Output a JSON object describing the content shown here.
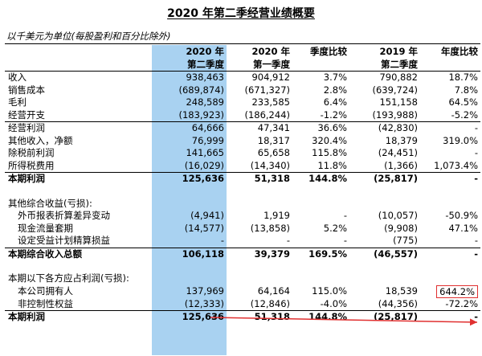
{
  "title": "2020 年第二季经营业绩概要",
  "subtitle": "以千美元为单位(每股盈利和百分比除外)",
  "headers": {
    "row1": [
      "",
      "2020 年",
      "2020 年",
      "季度比较",
      "2019 年",
      "年度比较"
    ],
    "row2": [
      "",
      "第二季度",
      "第一季度",
      "",
      "第二季度",
      ""
    ]
  },
  "rows": [
    {
      "cells": [
        "收入",
        "938,463",
        "904,912",
        "3.7%",
        "790,882",
        "18.7%"
      ]
    },
    {
      "cells": [
        "销售成本",
        "(689,874)",
        "(671,327)",
        "2.8%",
        "(639,724)",
        "7.8%"
      ]
    },
    {
      "cells": [
        "毛利",
        "248,589",
        "233,585",
        "6.4%",
        "151,158",
        "64.5%"
      ]
    },
    {
      "cells": [
        "经营开支",
        "(183,923)",
        "(186,244)",
        "-1.2%",
        "(193,988)",
        "-5.2%"
      ]
    },
    {
      "cells": [
        "经营利润",
        "64,666",
        "47,341",
        "36.6%",
        "(42,830)",
        "-"
      ]
    },
    {
      "cells": [
        "其他收入，净额",
        "76,999",
        "18,317",
        "320.4%",
        "18,379",
        "319.0%"
      ]
    },
    {
      "cells": [
        "除税前利润",
        "141,665",
        "65,658",
        "115.8%",
        "(24,451)",
        "-"
      ]
    },
    {
      "cells": [
        "所得税费用",
        "(16,029)",
        "(14,340)",
        "11.8%",
        "(1,366)",
        "1,073.4%"
      ]
    },
    {
      "cells": [
        "本期利润",
        "125,636",
        "51,318",
        "144.8%",
        "(25,817)",
        "-"
      ]
    },
    {
      "cells": [
        "",
        "",
        "",
        "",
        "",
        ""
      ]
    },
    {
      "cells": [
        "其他综合收益(亏损):",
        "",
        "",
        "",
        "",
        ""
      ]
    },
    {
      "cells": [
        "外币报表折算差异变动",
        "(4,941)",
        "1,919",
        "-",
        "(10,057)",
        "-50.9%"
      ]
    },
    {
      "cells": [
        "现金流量套期",
        "(14,577)",
        "(13,858)",
        "5.2%",
        "(9,908)",
        "47.1%"
      ]
    },
    {
      "cells": [
        "设定受益计划精算损益",
        "-",
        "-",
        "-",
        "(775)",
        "-"
      ]
    },
    {
      "cells": [
        "本期综合收入总额",
        "106,118",
        "39,379",
        "169.5%",
        "(46,557)",
        "-"
      ]
    },
    {
      "cells": [
        "",
        "",
        "",
        "",
        "",
        ""
      ]
    },
    {
      "cells": [
        "本期以下各方应占利润(亏损):",
        "",
        "",
        "",
        "",
        ""
      ]
    },
    {
      "cells": [
        "本公司拥有人",
        "137,969",
        "64,164",
        "115.0%",
        "18,539",
        "644.2%"
      ]
    },
    {
      "cells": [
        "非控制性权益",
        "(12,333)",
        "(12,846)",
        "-4.0%",
        "(44,356)",
        "-72.2%"
      ]
    },
    {
      "cells": [
        "本期利润",
        "125,636",
        "51,318",
        "144.8%",
        "(25,817)",
        "-"
      ]
    }
  ],
  "colors": {
    "highlight": "#a9d2f1",
    "annotation": "#e03030"
  }
}
